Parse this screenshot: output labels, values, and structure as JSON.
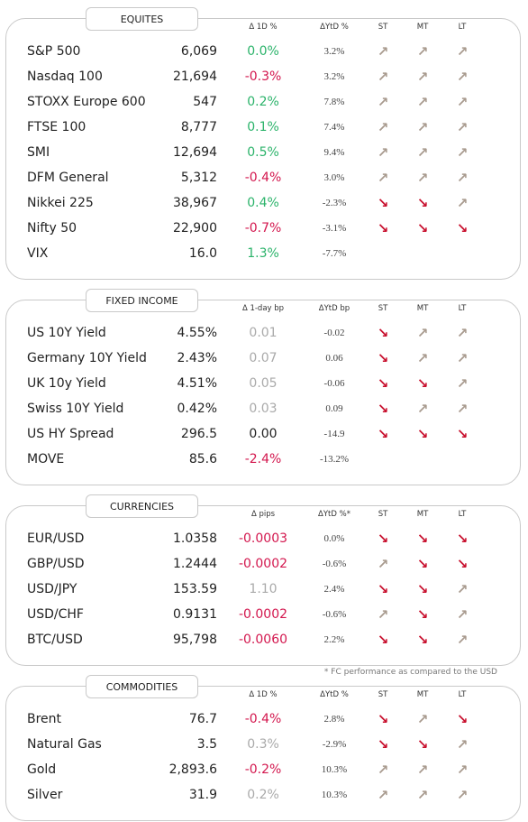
{
  "sections": [
    {
      "title": "EQUITES",
      "headers": [
        "Δ 1D %",
        "ΔYtD %",
        "ST",
        "MT",
        "LT"
      ],
      "rows": [
        [
          "S&P 500",
          "6,069",
          "0.0%",
          "3.2%",
          "↗",
          "↗",
          "↗"
        ],
        [
          "Nasdaq 100",
          "21,694",
          "-0.3%",
          "3.2%",
          "↗",
          "↗",
          "↗"
        ],
        [
          "STOXX Europe 600",
          "547",
          "0.2%",
          "7.8%",
          "↗",
          "↗",
          "↗"
        ],
        [
          "FTSE 100",
          "8,777",
          "0.1%",
          "7.4%",
          "↗",
          "↗",
          "↗"
        ],
        [
          "SMI",
          "12,694",
          "0.5%",
          "9.4%",
          "↗",
          "↗",
          "↗"
        ],
        [
          "DFM General",
          "5,312",
          "-0.4%",
          "3.0%",
          "↗",
          "↗",
          "↗"
        ],
        [
          "Nikkei 225",
          "38,967",
          "0.4%",
          "-2.3%",
          "↘",
          "↘",
          "↗"
        ],
        [
          "Nifty  50",
          "22,900",
          "-0.7%",
          "-3.1%",
          "↘",
          "↘",
          "↘"
        ],
        [
          "VIX",
          "16.0",
          "1.3%",
          "-7.7%",
          null,
          null,
          null
        ]
      ],
      "change_colors": [
        "#2bb36a",
        "#d3174e",
        "#2bb36a",
        "#2bb36a",
        "#2bb36a",
        "#d3174e",
        "#2bb36a",
        "#d3174e",
        "#2bb36a"
      ]
    },
    {
      "title": "FIXED INCOME",
      "headers": [
        "Δ 1-day bp",
        "ΔYtD bp",
        "ST",
        "MT",
        "LT"
      ],
      "rows": [
        [
          "US 10Y Yield",
          "4.55%",
          "0.01",
          "-0.02",
          "↘",
          "↗",
          "↗"
        ],
        [
          "Germany 10Y Yield",
          "2.43%",
          "0.07",
          "0.06",
          "↘",
          "↗",
          "↗"
        ],
        [
          "UK 10y Yield",
          "4.51%",
          "0.05",
          "-0.06",
          "↘",
          "↘",
          "↗"
        ],
        [
          "Swiss 10Y Yield",
          "0.42%",
          "0.03",
          "0.09",
          "↘",
          "↗",
          "↗"
        ],
        [
          "US HY Spread",
          "296.5",
          "0.00",
          "-14.9",
          "↘",
          "↘",
          "↘"
        ],
        [
          "MOVE",
          "85.6",
          "-2.4%",
          "-13.2%",
          null,
          null,
          null
        ]
      ],
      "change_colors": [
        "#aaaaaa",
        "#aaaaaa",
        "#aaaaaa",
        "#aaaaaa",
        "#222222",
        "#d3174e"
      ]
    },
    {
      "title": "CURRENCIES",
      "headers": [
        "Δ pips",
        "ΔYtD %*",
        "ST",
        "MT",
        "LT"
      ],
      "rows": [
        [
          "EUR/USD",
          "1.0358",
          "-0.0003",
          "0.0%",
          "↘",
          "↘",
          "↘"
        ],
        [
          "GBP/USD",
          "1.2444",
          "-0.0002",
          "-0.6%",
          "↗",
          "↘",
          "↘"
        ],
        [
          "USD/JPY",
          "153.59",
          "1.10",
          "2.4%",
          "↘",
          "↘",
          "↗"
        ],
        [
          "USD/CHF",
          "0.9131",
          "-0.0002",
          "-0.6%",
          "↗",
          "↘",
          "↗"
        ],
        [
          "BTC/USD",
          "95,798",
          "-0.0060",
          "2.2%",
          "↘",
          "↘",
          "↗"
        ]
      ],
      "change_colors": [
        "#d3174e",
        "#d3174e",
        "#aaaaaa",
        "#d3174e",
        "#d3174e"
      ]
    },
    {
      "title": "COMMODITIES",
      "headers": [
        "Δ 1D %",
        "ΔYtD %",
        "ST",
        "MT",
        "LT"
      ],
      "rows": [
        [
          "Brent",
          "76.7",
          "-0.4%",
          "2.8%",
          "↘",
          "↗",
          "↘"
        ],
        [
          "Natural Gas",
          "3.5",
          "0.3%",
          "-2.9%",
          "↘",
          "↘",
          "↗"
        ],
        [
          "Gold",
          "2,893.6",
          "-0.2%",
          "10.3%",
          "↗",
          "↗",
          "↗"
        ],
        [
          "Silver",
          "31.9",
          "0.2%",
          "10.3%",
          "↗",
          "↗",
          "↗"
        ]
      ],
      "change_colors": [
        "#d3174e",
        "#aaaaaa",
        "#d3174e",
        "#aaaaaa"
      ]
    }
  ],
  "footnote": "* FC performance as compared to the USD"
}
